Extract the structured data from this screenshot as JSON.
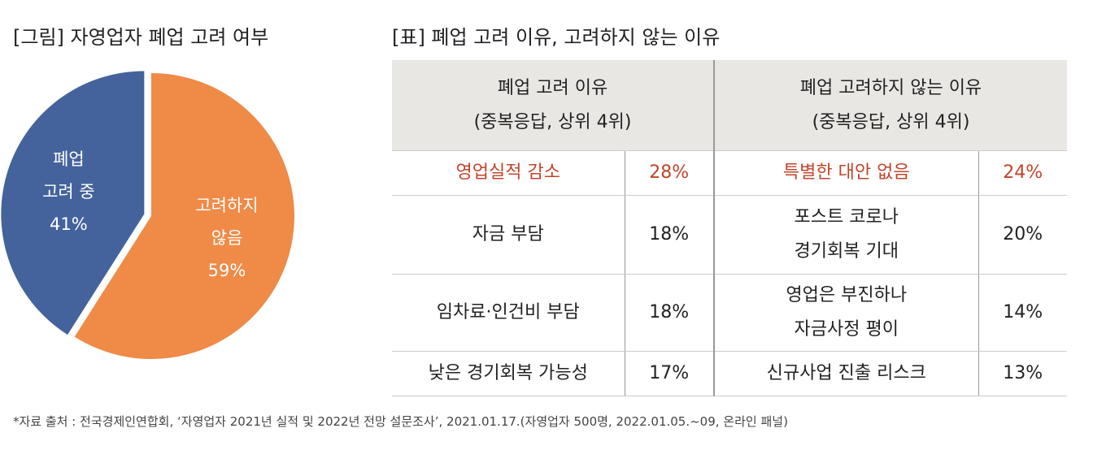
{
  "chart_data": {
    "type": "pie",
    "title": "[그림] 자영업자 폐업 고려 여부",
    "categories": [
      "고려하지\n않음",
      "폐업\n고려 중"
    ],
    "values": [
      59,
      41
    ],
    "value_labels": [
      "59%",
      "41%"
    ],
    "colors": [
      "#ef8a47",
      "#44639c"
    ]
  },
  "table": {
    "title": "[표] 폐업 고려 이유, 고려하지 않는 이유",
    "headers": [
      "폐업 고려 이유\n(중복응답, 상위 4위)",
      "폐업 고려하지 않는 이유\n(중복응답, 상위 4위)"
    ],
    "rows": [
      [
        "영업실적 감소",
        "28%",
        "특별한 대안 없음",
        "24%"
      ],
      [
        "자금 부담",
        "18%",
        "포스트 코로나\n경기회복 기대",
        "20%"
      ],
      [
        "임차료·인건비 부담",
        "18%",
        "영업은 부진하나\n자금사정 평이",
        "14%"
      ],
      [
        "낮은 경기회복 가능성",
        "17%",
        "신규사업 진출 리스크",
        "13%"
      ]
    ]
  },
  "footnote": "*자료 출처 : 전국경제인연합회, ‘자영업자 2021년 실적 및 2022년 전망 설문조사’, 2021.01.17.(자영업자 500명, 2022.01.05.~09, 온라인 패널)"
}
